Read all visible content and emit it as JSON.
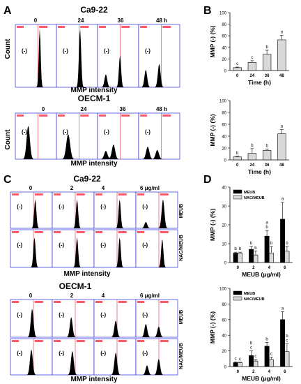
{
  "panels": {
    "A": {
      "letter": "A",
      "groups": [
        {
          "title": "Ca9-22",
          "timepoints": [
            "0",
            "24",
            "36",
            "48 h"
          ],
          "marker": "(-)",
          "xlabel": "MMP intensity",
          "ylabel": "Count",
          "peak_profile": "shift_left_bimodal"
        },
        {
          "title": "OECM-1",
          "timepoints": [
            "0",
            "24",
            "36",
            "48 h"
          ],
          "marker": "(-)",
          "xlabel": "MMP intensity",
          "ylabel": "Count",
          "peak_profile": "shift_left_bimodal"
        }
      ]
    },
    "B": {
      "letter": "B"
    },
    "C": {
      "letter": "C",
      "groups": [
        {
          "title": "Ca9-22",
          "doses": [
            "0",
            "2",
            "4",
            "6 μg/ml"
          ],
          "row_labels": [
            "MEUB",
            "NAC/MEUB"
          ],
          "marker": "(-)",
          "xlabel": "MMP intensity"
        },
        {
          "title": "OECM-1",
          "doses": [
            "0",
            "2",
            "4",
            "6 μg/ml"
          ],
          "row_labels": [
            "MEUB",
            "NAC/MEUB"
          ],
          "marker": "(-)",
          "xlabel": "MMP intensity"
        }
      ]
    },
    "D": {
      "letter": "D"
    }
  },
  "chart_data": [
    {
      "id": "B1",
      "type": "bar",
      "categories": [
        "0",
        "24",
        "36",
        "48"
      ],
      "values": [
        5,
        14,
        28,
        53
      ],
      "errors": [
        1,
        3,
        7,
        8
      ],
      "letters": [
        "c",
        "c",
        "b",
        "a"
      ],
      "xlabel": "Time (h)",
      "ylabel": "MMP (-) (%)",
      "ylim": [
        0,
        100
      ],
      "yticks": [
        0,
        20,
        40,
        60,
        80,
        100
      ],
      "bar_color": "#d9d9d9"
    },
    {
      "id": "B2",
      "type": "bar",
      "categories": [
        "0",
        "24",
        "36",
        "48"
      ],
      "values": [
        5,
        11,
        16,
        44
      ],
      "errors": [
        1,
        8,
        2,
        7
      ],
      "letters": [
        "b",
        "b",
        "b",
        "a"
      ],
      "xlabel": "Time (h)",
      "ylabel": "MMP (-) (%)",
      "ylim": [
        0,
        100
      ],
      "yticks": [
        0,
        20,
        40,
        60,
        80,
        100
      ],
      "bar_color": "#d9d9d9"
    },
    {
      "id": "D1",
      "type": "bar",
      "categories": [
        "0",
        "2",
        "4",
        "6"
      ],
      "series": [
        {
          "name": "MEUB",
          "values": [
            5,
            7,
            14,
            23
          ],
          "errors": [
            0.5,
            1.5,
            3,
            9
          ],
          "letters": [
            "b",
            "b",
            "a\nb",
            "a"
          ],
          "color": "#000000"
        },
        {
          "name": "NAC/MEUB",
          "values": [
            5,
            4,
            5,
            6
          ],
          "errors": [
            0.5,
            2,
            3.5,
            2.5
          ],
          "letters": [
            "b",
            "b",
            "b",
            "b"
          ],
          "color": "#d9d9d9"
        }
      ],
      "xlabel": "MEUB (μg/ml)",
      "ylabel": "MMP (-) (%)",
      "ylim": [
        0,
        40
      ],
      "yticks": [
        0,
        10,
        20,
        30,
        40
      ],
      "legend": "top-left"
    },
    {
      "id": "D2",
      "type": "bar",
      "categories": [
        "0",
        "2",
        "4",
        "6"
      ],
      "series": [
        {
          "name": "MEUB",
          "values": [
            5,
            14,
            26,
            60
          ],
          "errors": [
            1,
            6,
            5,
            10
          ],
          "letters": [
            "c",
            "b\nc",
            "b",
            "a"
          ],
          "color": "#000000"
        },
        {
          "name": "NAC/MEUB",
          "values": [
            5,
            7,
            9,
            19
          ],
          "errors": [
            0.5,
            2,
            3,
            10
          ],
          "letters": [
            "c",
            "c",
            "c",
            "b\nc"
          ],
          "color": "#d9d9d9"
        }
      ],
      "xlabel": "MEUB (μg/ml)",
      "ylabel": "MMP (-) (%)",
      "ylim": [
        0,
        100
      ],
      "yticks": [
        0,
        20,
        40,
        60,
        80,
        100
      ],
      "legend": "top-left"
    }
  ]
}
